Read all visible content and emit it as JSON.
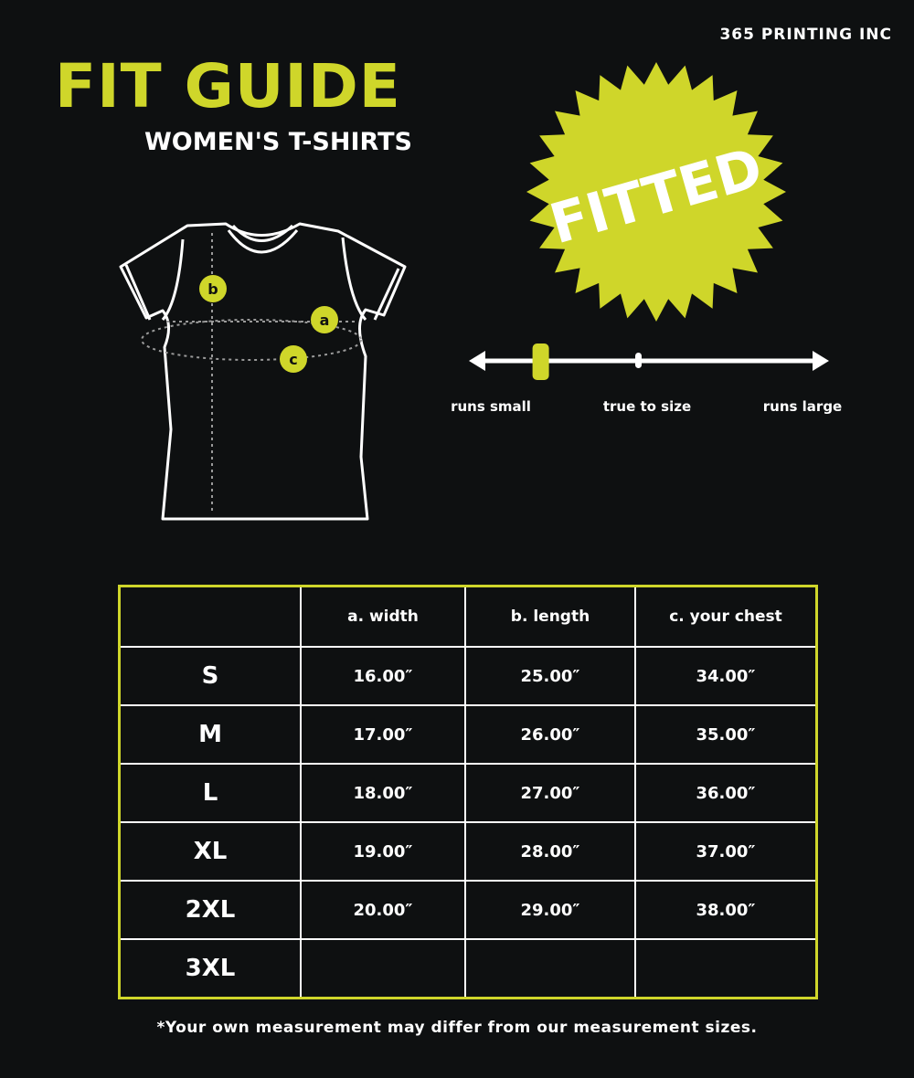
{
  "brand": "365 PRINTING INC",
  "title": "FIT GUIDE",
  "subtitle": "WOMEN'S T-SHIRTS",
  "badge": "FITTED",
  "colors": {
    "accent": "#cfd62a",
    "background": "#0e1011",
    "text": "#ffffff"
  },
  "diagram": {
    "markers": [
      "a",
      "b",
      "c"
    ]
  },
  "fit_scale": {
    "labels": [
      "runs small",
      "true to size",
      "runs large"
    ],
    "value": 0.18
  },
  "table": {
    "headers": [
      "",
      "a. width",
      "b. length",
      "c. your chest"
    ],
    "rows": [
      [
        "S",
        "16.00″",
        "25.00″",
        "34.00″"
      ],
      [
        "M",
        "17.00″",
        "26.00″",
        "35.00″"
      ],
      [
        "L",
        "18.00″",
        "27.00″",
        "36.00″"
      ],
      [
        "XL",
        "19.00″",
        "28.00″",
        "37.00″"
      ],
      [
        "2XL",
        "20.00″",
        "29.00″",
        "38.00″"
      ],
      [
        "3XL",
        "",
        "",
        ""
      ]
    ]
  },
  "note": "*Your own measurement may differ from our measurement sizes."
}
